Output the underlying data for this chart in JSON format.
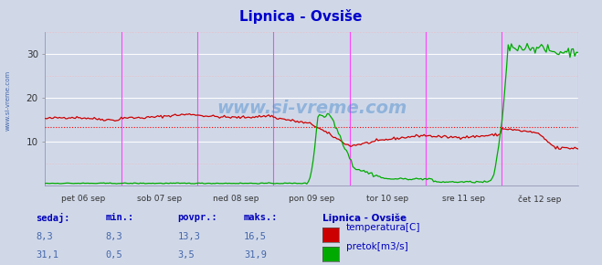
{
  "title": "Lipnica - Ovsiše",
  "title_color": "#0000cc",
  "bg_color": "#d0d8e8",
  "plot_bg_color": "#d0d8e8",
  "x_min": 0,
  "x_max": 336,
  "y_min": 0,
  "y_max": 35,
  "y_ticks": [
    10,
    20,
    30
  ],
  "day_lines_x": [
    48,
    96,
    144,
    192,
    240,
    288,
    336
  ],
  "day_labels": [
    "pet 06 sep",
    "sob 07 sep",
    "ned 08 sep",
    "pon 09 sep",
    "tor 10 sep",
    "sre 11 sep",
    "čet 12 sep"
  ],
  "day_label_x_centers": [
    24,
    72,
    120,
    168,
    216,
    264,
    312
  ],
  "avg_line_y_temp": 13.3,
  "temp_color": "#cc0000",
  "flow_color": "#00aa00",
  "watermark": "www.si-vreme.com",
  "watermark_color": "#4488cc",
  "watermark_alpha": 0.45,
  "legend_title": "Lipnica - Ovsiše",
  "legend_items": [
    "temperatura[C]",
    "pretok[m3/s]"
  ],
  "legend_colors": [
    "#cc0000",
    "#00aa00"
  ],
  "stats_headers": [
    "sedaj:",
    "min.:",
    "povpr.:",
    "maks.:"
  ],
  "stats_temp": [
    "8,3",
    "8,3",
    "13,3",
    "16,5"
  ],
  "stats_flow": [
    "31,1",
    "0,5",
    "3,5",
    "31,9"
  ]
}
